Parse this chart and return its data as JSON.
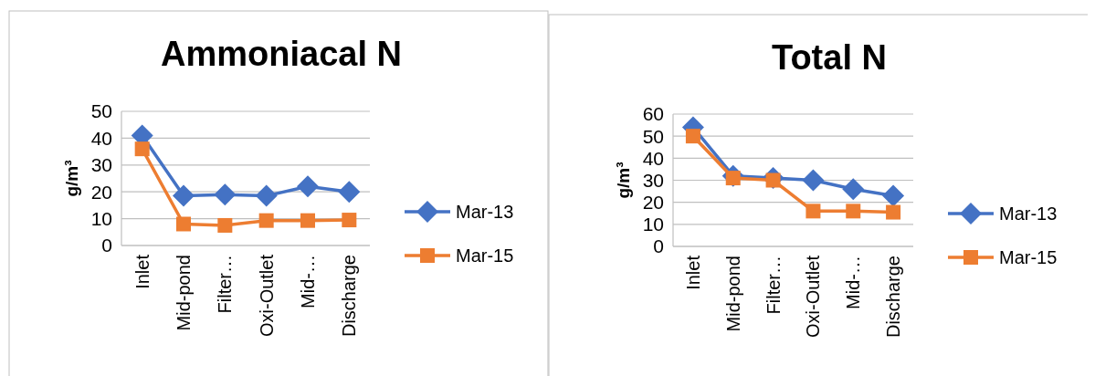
{
  "chart_data": [
    {
      "type": "line",
      "title": "Ammoniacal N",
      "ylabel": "g/m³",
      "categories": [
        "Inlet",
        "Mid-pond",
        "Filter…",
        "Oxi-Outlet",
        "Mid-…",
        "Discharge"
      ],
      "ylim": [
        0,
        50
      ],
      "yticks": [
        0,
        10,
        20,
        30,
        40,
        50
      ],
      "grid": "y",
      "legend": "right",
      "series": [
        {
          "name": "Mar-13",
          "color": "#4472c4",
          "marker": "diamond",
          "values": [
            41,
            18.5,
            19,
            18.5,
            22,
            20
          ]
        },
        {
          "name": "Mar-15",
          "color": "#ed7d31",
          "marker": "square",
          "values": [
            36,
            8,
            7.5,
            9.3,
            9.3,
            9.5
          ]
        }
      ]
    },
    {
      "type": "line",
      "title": "Total N",
      "ylabel": "g/m³",
      "categories": [
        "Inlet",
        "Mid-pond",
        "Filter…",
        "Oxi-Outlet",
        "Mid-…",
        "Discharge"
      ],
      "ylim": [
        0,
        60
      ],
      "yticks": [
        0,
        10,
        20,
        30,
        40,
        50,
        60
      ],
      "grid": "y",
      "legend": "right",
      "series": [
        {
          "name": "Mar-13",
          "color": "#4472c4",
          "marker": "diamond",
          "values": [
            54,
            32,
            31,
            30,
            26,
            23
          ]
        },
        {
          "name": "Mar-15",
          "color": "#ed7d31",
          "marker": "square",
          "values": [
            50,
            31,
            30,
            16,
            16,
            15.5
          ]
        }
      ]
    }
  ]
}
